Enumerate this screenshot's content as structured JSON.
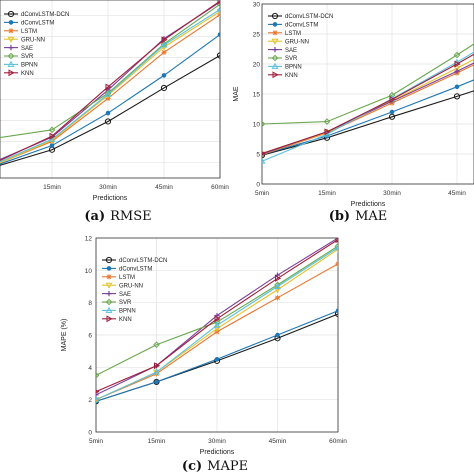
{
  "series_colors": [
    "#1a1a1a",
    "#1f77b4",
    "#e8772e",
    "#e6c229",
    "#7b3f98",
    "#6aa84f",
    "#5bc0de",
    "#9e1e3c"
  ],
  "chart_data": [
    {
      "type": "line",
      "caption_letter": "(a)",
      "caption_text": "RMSE",
      "title": "",
      "xlabel": "Predictions",
      "ylabel": "",
      "categories": [
        "5min",
        "15min",
        "30min",
        "45min",
        "60min"
      ],
      "ylim": [
        4.5,
        21.5
      ],
      "yticks": [],
      "legend": "top-left",
      "grid": true,
      "series": [
        {
          "name": "dConvLSTM-DCN",
          "values": [
            5.6,
            7.2,
            9.9,
            13.1,
            16.2
          ]
        },
        {
          "name": "dConvLSTM",
          "values": [
            5.7,
            7.6,
            10.7,
            14.3,
            18.2
          ]
        },
        {
          "name": "LSTM",
          "values": [
            5.8,
            8.0,
            12.1,
            16.5,
            20.1
          ]
        },
        {
          "name": "GRU-NN",
          "values": [
            5.8,
            8.1,
            12.4,
            17.0,
            20.4
          ]
        },
        {
          "name": "SAE",
          "values": [
            6.1,
            8.4,
            12.9,
            17.8,
            21.3
          ]
        },
        {
          "name": "SVR",
          "values": [
            8.3,
            9.1,
            12.6,
            17.3,
            21.1
          ]
        },
        {
          "name": "BPNN",
          "values": [
            5.9,
            8.2,
            12.5,
            17.2,
            20.6
          ]
        },
        {
          "name": "KNN",
          "values": [
            6.0,
            8.5,
            13.2,
            17.7,
            21.4
          ]
        }
      ]
    },
    {
      "type": "line",
      "caption_letter": "(b)",
      "caption_text": "MAE",
      "title": "",
      "xlabel": "Predictions",
      "ylabel": "MAE",
      "categories": [
        "5min",
        "15min",
        "30min",
        "45min"
      ],
      "ylim": [
        0,
        30
      ],
      "yticks": [
        "0",
        "5",
        "10",
        "15",
        "20",
        "25",
        "30"
      ],
      "legend": "top-left",
      "grid": true,
      "series": [
        {
          "name": "dConvLSTM-DCN",
          "values": [
            4.8,
            7.7,
            11.2,
            14.6
          ]
        },
        {
          "name": "dConvLSTM",
          "values": [
            4.9,
            8.0,
            12.0,
            16.2
          ]
        },
        {
          "name": "LSTM",
          "values": [
            4.9,
            8.5,
            13.5,
            18.5
          ]
        },
        {
          "name": "GRU-NN",
          "values": [
            5.0,
            8.6,
            13.9,
            19.3
          ]
        },
        {
          "name": "SAE",
          "values": [
            5.0,
            8.7,
            13.8,
            18.8
          ]
        },
        {
          "name": "SVR",
          "values": [
            10.0,
            10.4,
            14.8,
            21.5
          ]
        },
        {
          "name": "BPNN",
          "values": [
            3.8,
            8.3,
            14.2,
            20.3
          ]
        },
        {
          "name": "KNN",
          "values": [
            5.1,
            8.7,
            14.1,
            20.0
          ]
        }
      ]
    },
    {
      "type": "line",
      "caption_letter": "(c)",
      "caption_text": "MAPE",
      "title": "",
      "xlabel": "Predictions",
      "ylabel": "MAPE (%)",
      "categories": [
        "5min",
        "15min",
        "30min",
        "45min",
        "60min"
      ],
      "ylim": [
        0,
        12
      ],
      "yticks": [
        "0",
        "2",
        "4",
        "6",
        "8",
        "10",
        "12"
      ],
      "legend": "top-left",
      "grid": true,
      "series": [
        {
          "name": "dConvLSTM-DCN",
          "values": [
            1.9,
            3.1,
            4.4,
            5.8,
            7.3
          ]
        },
        {
          "name": "dConvLSTM",
          "values": [
            1.9,
            3.1,
            4.5,
            6.0,
            7.5
          ]
        },
        {
          "name": "LSTM",
          "values": [
            2.0,
            3.6,
            6.2,
            8.3,
            10.4
          ]
        },
        {
          "name": "GRU-NN",
          "values": [
            2.0,
            3.7,
            6.4,
            8.8,
            11.3
          ]
        },
        {
          "name": "SAE",
          "values": [
            2.3,
            4.1,
            7.2,
            9.7,
            12.0
          ]
        },
        {
          "name": "SVR",
          "values": [
            3.5,
            5.4,
            6.8,
            9.1,
            11.5
          ]
        },
        {
          "name": "BPNN",
          "values": [
            2.0,
            3.7,
            6.6,
            9.0,
            11.4
          ]
        },
        {
          "name": "KNN",
          "values": [
            2.5,
            4.1,
            7.0,
            9.5,
            11.9
          ]
        }
      ]
    }
  ]
}
